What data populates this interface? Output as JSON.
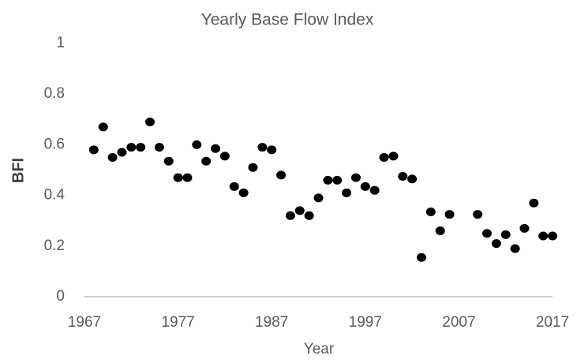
{
  "chart_data": {
    "type": "scatter",
    "title": "Yearly Base Flow Index",
    "x_label": "Year",
    "y_label": "BFI",
    "color": "#000000",
    "x": [
      1968,
      1969,
      1970,
      1971,
      1972,
      1973,
      1974,
      1975,
      1976,
      1977,
      1978,
      1979,
      1980,
      1981,
      1982,
      1983,
      1984,
      1985,
      1986,
      1987,
      1988,
      1989,
      1990,
      1991,
      1992,
      1993,
      1994,
      1995,
      1996,
      1997,
      1998,
      1999,
      2000,
      2001,
      2002,
      2003,
      2004,
      2005,
      2006,
      2009,
      2010,
      2011,
      2012,
      2013,
      2014,
      2015,
      2016,
      2017
    ],
    "values": [
      0.58,
      0.67,
      0.55,
      0.57,
      0.59,
      0.59,
      0.69,
      0.59,
      0.535,
      0.47,
      0.47,
      0.6,
      0.535,
      0.585,
      0.555,
      0.435,
      0.41,
      0.51,
      0.59,
      0.58,
      0.48,
      0.32,
      0.34,
      0.32,
      0.39,
      0.46,
      0.46,
      0.41,
      0.47,
      0.435,
      0.42,
      0.55,
      0.555,
      0.475,
      0.465,
      0.155,
      0.335,
      0.26,
      0.325,
      0.325,
      0.25,
      0.21,
      0.245,
      0.19,
      0.27,
      0.37,
      0.24,
      0.24
    ],
    "xlim": [
      1967,
      2017
    ],
    "xticks": [
      1967,
      1977,
      1987,
      1997,
      2007,
      2017
    ],
    "ylim": [
      0,
      1
    ],
    "yticks": [
      0,
      0.2,
      0.4,
      0.6,
      0.8,
      1
    ],
    "grid": false
  }
}
